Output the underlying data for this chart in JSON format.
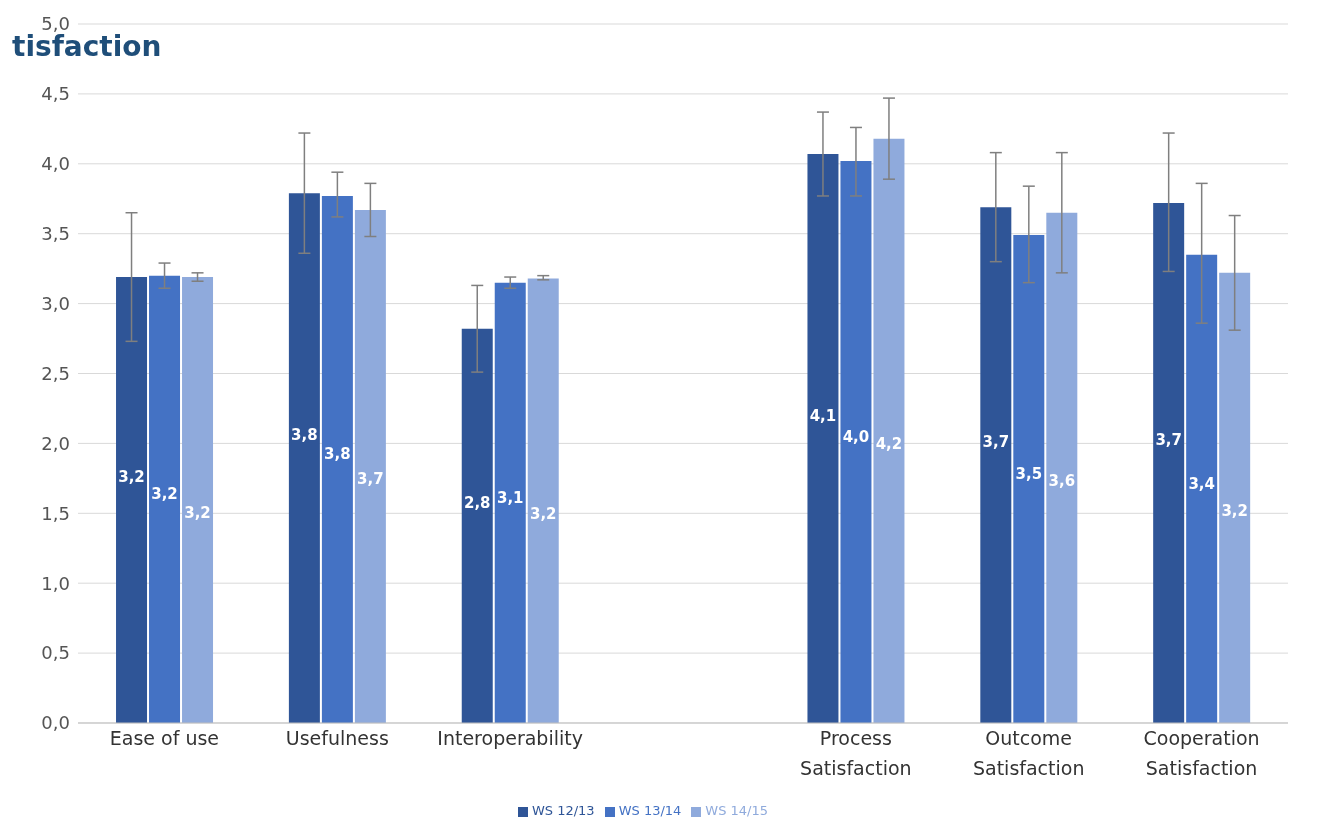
{
  "chart_data": {
    "type": "bar",
    "title": "tisfaction",
    "categories": [
      "Ease of use",
      "Usefulness",
      "Interoperability",
      null,
      "Process Satisfaction",
      "Outcome Satisfaction",
      "Cooperation Satisfaction"
    ],
    "series": [
      {
        "name": "WS 12/13",
        "color": "#2f5597",
        "values": [
          3.19,
          3.79,
          2.82,
          null,
          4.07,
          3.69,
          3.72
        ],
        "value_labels": [
          "3,2",
          "3,8",
          "2,8",
          null,
          "4,1",
          "3,7",
          "3,7"
        ],
        "errors": [
          [
            2.73,
            3.65
          ],
          [
            3.36,
            4.22
          ],
          [
            2.51,
            3.13
          ],
          null,
          [
            3.77,
            4.37
          ],
          [
            3.3,
            4.08
          ],
          [
            3.23,
            4.22
          ]
        ]
      },
      {
        "name": "WS 13/14",
        "color": "#4472c4",
        "values": [
          3.2,
          3.77,
          3.15,
          null,
          4.02,
          3.49,
          3.35
        ],
        "value_labels": [
          "3,2",
          "3,8",
          "3,1",
          null,
          "4,0",
          "3,5",
          "3,4"
        ],
        "errors": [
          [
            3.11,
            3.29
          ],
          [
            3.62,
            3.94
          ],
          [
            3.11,
            3.19
          ],
          null,
          [
            3.77,
            4.26
          ],
          [
            3.15,
            3.84
          ],
          [
            2.86,
            3.86
          ]
        ]
      },
      {
        "name": "WS 14/15",
        "color": "#8faadc",
        "values": [
          3.19,
          3.67,
          3.18,
          null,
          4.18,
          3.65,
          3.22
        ],
        "value_labels": [
          "3,2",
          "3,7",
          "3,2",
          null,
          "4,2",
          "3,6",
          "3,2"
        ],
        "errors": [
          [
            3.16,
            3.22
          ],
          [
            3.48,
            3.86
          ],
          [
            3.17,
            3.2
          ],
          null,
          [
            3.89,
            4.47
          ],
          [
            3.22,
            4.08
          ],
          [
            2.81,
            3.63
          ]
        ]
      }
    ],
    "ylim": [
      0,
      5
    ],
    "yticks": [
      {
        "value": 0,
        "label": "0,0"
      },
      {
        "value": 0.5,
        "label": "0,5"
      },
      {
        "value": 1,
        "label": "1,0"
      },
      {
        "value": 1.5,
        "label": "1,5"
      },
      {
        "value": 2,
        "label": "2,0"
      },
      {
        "value": 2.5,
        "label": "2,5"
      },
      {
        "value": 3,
        "label": "3,0"
      },
      {
        "value": 3.5,
        "label": "3,5"
      },
      {
        "value": 4,
        "label": "4,0"
      },
      {
        "value": 4.5,
        "label": "4,5"
      },
      {
        "value": 5,
        "label": "5,0"
      }
    ],
    "grid": "y",
    "legend": "bottom"
  }
}
